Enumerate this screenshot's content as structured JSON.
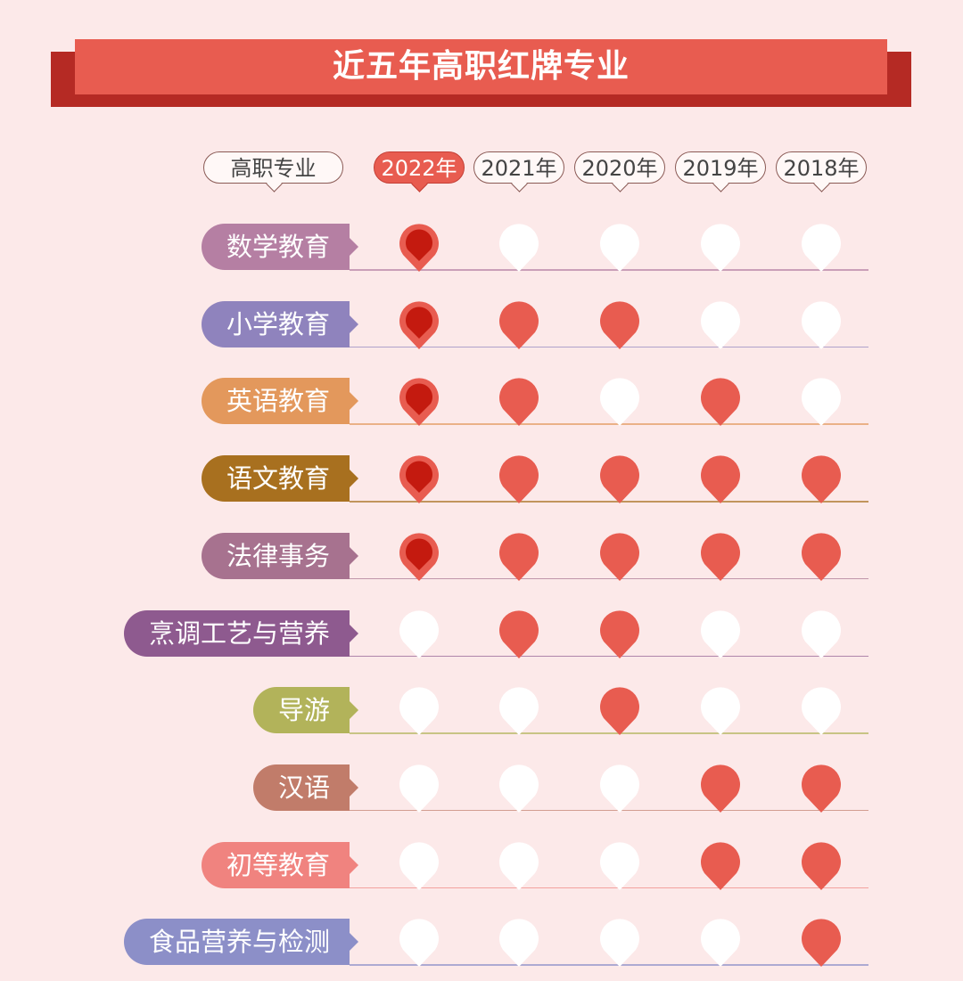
{
  "title": "近五年高职红牌专业",
  "header": {
    "major_label": "高职专业",
    "years": [
      "2022年",
      "2021年",
      "2020年",
      "2019年",
      "2018年"
    ],
    "active_year_index": 0
  },
  "colors": {
    "background": "#fce9e9",
    "accent": "#e85c50",
    "accent_dark": "#c41a0f",
    "banner_shadow": "#b52a24",
    "empty_pin": "#ffffff"
  },
  "legend_semantics": {
    "red_pin": "red-card major in that year",
    "white_pin": "not listed"
  },
  "chart_data": {
    "type": "table",
    "columns": [
      "2022年",
      "2021年",
      "2020年",
      "2019年",
      "2018年"
    ],
    "rows": [
      {
        "major": "数学教育",
        "color": "#b57fa3",
        "values": [
          1,
          0,
          0,
          0,
          0
        ]
      },
      {
        "major": "小学教育",
        "color": "#8f83bd",
        "values": [
          1,
          1,
          1,
          0,
          0
        ]
      },
      {
        "major": "英语教育",
        "color": "#e3985c",
        "values": [
          1,
          1,
          0,
          1,
          0
        ]
      },
      {
        "major": "语文教育",
        "color": "#a8701f",
        "values": [
          1,
          1,
          1,
          1,
          1
        ]
      },
      {
        "major": "法律事务",
        "color": "#a7728f",
        "values": [
          1,
          1,
          1,
          1,
          1
        ]
      },
      {
        "major": "烹调工艺与营养",
        "color": "#8e5a8f",
        "values": [
          0,
          1,
          1,
          0,
          0
        ]
      },
      {
        "major": "导游",
        "color": "#b2b35a",
        "values": [
          0,
          0,
          1,
          0,
          0
        ]
      },
      {
        "major": "汉语",
        "color": "#c17c6a",
        "values": [
          0,
          0,
          0,
          1,
          1
        ]
      },
      {
        "major": "初等教育",
        "color": "#f0837f",
        "values": [
          0,
          0,
          0,
          1,
          1
        ]
      },
      {
        "major": "食品营养与检测",
        "color": "#8c8fc8",
        "values": [
          0,
          0,
          0,
          0,
          1
        ]
      }
    ]
  }
}
